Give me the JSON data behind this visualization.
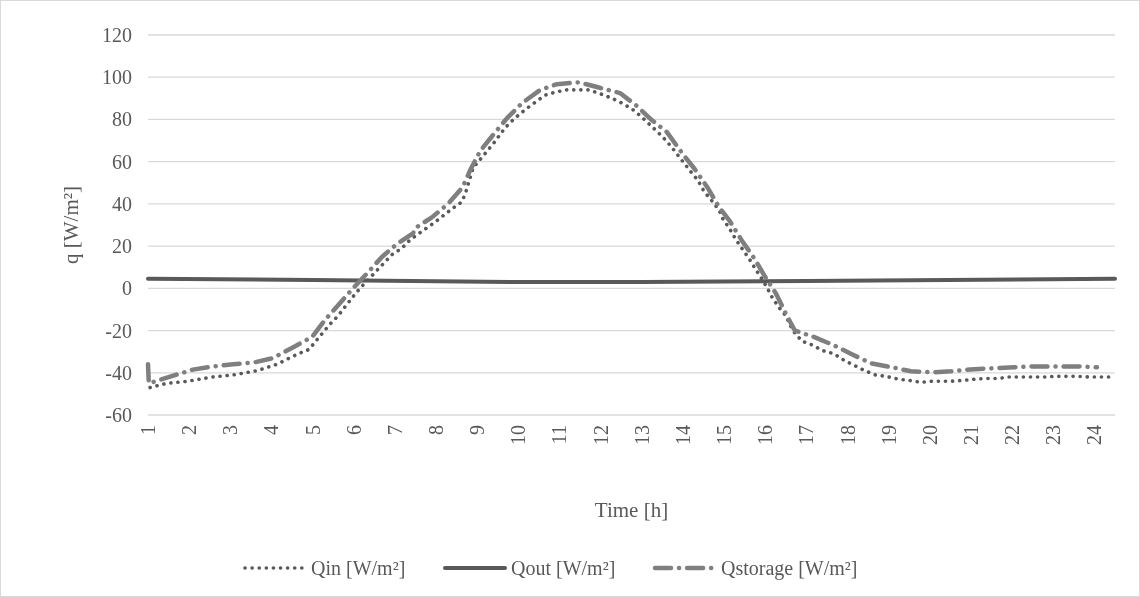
{
  "chart_data": {
    "type": "line",
    "xlabel": "Time [h]",
    "ylabel": "q [W/m²]",
    "xlim": [
      1,
      24.5
    ],
    "xticks": [
      1,
      2,
      3,
      4,
      5,
      6,
      7,
      8,
      9,
      10,
      11,
      12,
      13,
      14,
      15,
      16,
      17,
      18,
      19,
      20,
      21,
      22,
      23,
      24
    ],
    "ylim": [
      -60,
      120
    ],
    "yticks": [
      -60,
      -40,
      -20,
      0,
      20,
      40,
      60,
      80,
      100,
      120
    ],
    "grid": "y",
    "legend": "bottom",
    "marker": "none",
    "series": [
      {
        "name": "Qin [W/m²]",
        "color": "#595959",
        "line_style": "dotted",
        "x": [
          1.05,
          1.46,
          1.97,
          2.56,
          3.07,
          3.65,
          4.13,
          4.65,
          4.91,
          5.08,
          5.42,
          5.62,
          5.98,
          6.15,
          6.54,
          6.93,
          7.17,
          7.37,
          7.73,
          7.95,
          8.41,
          8.63,
          8.73,
          8.9,
          9.07,
          9.24,
          9.41,
          9.6,
          9.77,
          9.97,
          10.19,
          10.4,
          10.65,
          10.91,
          11.18,
          11.45,
          11.72,
          12.01,
          12.28,
          12.49,
          12.76,
          12.98,
          13.17,
          13.39,
          13.59,
          13.76,
          14.0,
          14.2,
          14.37,
          14.51,
          14.68,
          14.88,
          14.97,
          15.14,
          15.29,
          15.43,
          15.61,
          15.75,
          15.9,
          16.04,
          16.16,
          16.33,
          16.5,
          16.67,
          16.89,
          17.16,
          17.4,
          17.67,
          17.91,
          18.16,
          18.42,
          18.67,
          18.93,
          19.23,
          19.49,
          19.79,
          20.05,
          20.32,
          20.51,
          20.81,
          21.1,
          21.36,
          21.66,
          21.92,
          22.22,
          22.48,
          22.77,
          23.04,
          23.33,
          23.6,
          23.89,
          24.18,
          24.38
        ],
        "values": [
          -47,
          -45,
          -44,
          -42,
          -41,
          -39,
          -36,
          -31,
          -29,
          -25,
          -17,
          -13,
          -4,
          0,
          8,
          16,
          19,
          23,
          28,
          31,
          38,
          41,
          46,
          57,
          61,
          65,
          69,
          74,
          78,
          81.5,
          85,
          88,
          91.5,
          93,
          94,
          94,
          94,
          92,
          90,
          88,
          85,
          81.5,
          78,
          74,
          70,
          66,
          60,
          55,
          51,
          46,
          42,
          37,
          33,
          28,
          23,
          19,
          14,
          9.5,
          5,
          0.5,
          -4,
          -9,
          -13,
          -20,
          -25,
          -27,
          -29.5,
          -31,
          -34,
          -36.5,
          -39,
          -41,
          -41.7,
          -43,
          -43.6,
          -44.5,
          -44,
          -44,
          -44,
          -43.6,
          -43,
          -42.7,
          -42.7,
          -42,
          -42,
          -42,
          -42,
          -41.7,
          -41.7,
          -41.7,
          -42,
          -42,
          -42
        ]
      },
      {
        "name": "Qout [W/m²]",
        "color": "#595959",
        "line_style": "solid",
        "x": [
          1,
          5,
          10,
          13,
          17,
          24.5
        ],
        "values": [
          4.5,
          4,
          3,
          3,
          3.5,
          4.5
        ]
      },
      {
        "name": "Qstorage [W/m²]",
        "color": "#7f7f7f",
        "line_style": "dashed",
        "x": [
          1,
          1.02,
          2.09,
          2.58,
          3.07,
          3.6,
          4.04,
          4.52,
          4.99,
          5.3,
          5.62,
          5.98,
          6.32,
          6.69,
          7.05,
          7.44,
          7.49,
          7.9,
          8.29,
          8.65,
          8.83,
          9.07,
          9.38,
          9.72,
          10.09,
          10.53,
          10.94,
          11.47,
          11.98,
          12.47,
          12.86,
          13.25,
          13.61,
          13.93,
          14.0,
          14.29,
          14.61,
          14.88,
          15.14,
          15.43,
          15.75,
          15.99,
          16.26,
          16.5,
          16.72,
          17.18,
          17.67,
          18.08,
          18.57,
          19.08,
          19.54,
          20.08,
          20.51,
          20.98,
          21.51,
          22.04,
          22.51,
          23.04,
          23.6,
          24.06
        ],
        "values": [
          -36,
          -45,
          -38.5,
          -37,
          -36,
          -35,
          -33,
          -28,
          -23,
          -15,
          -8,
          0,
          7,
          15,
          21,
          26,
          28.5,
          33.6,
          40,
          48,
          56,
          65,
          72.5,
          80.5,
          87.7,
          94,
          96.7,
          97.6,
          95,
          92.5,
          86.7,
          79.6,
          74,
          65.4,
          63.5,
          56.4,
          47.4,
          38.4,
          31.8,
          22.7,
          13.7,
          5.7,
          -2.4,
          -12,
          -20,
          -23,
          -27,
          -31,
          -35.5,
          -37.4,
          -39.3,
          -39.8,
          -39.3,
          -38.4,
          -37.9,
          -37.4,
          -37,
          -37,
          -37,
          -37.4
        ]
      }
    ]
  }
}
